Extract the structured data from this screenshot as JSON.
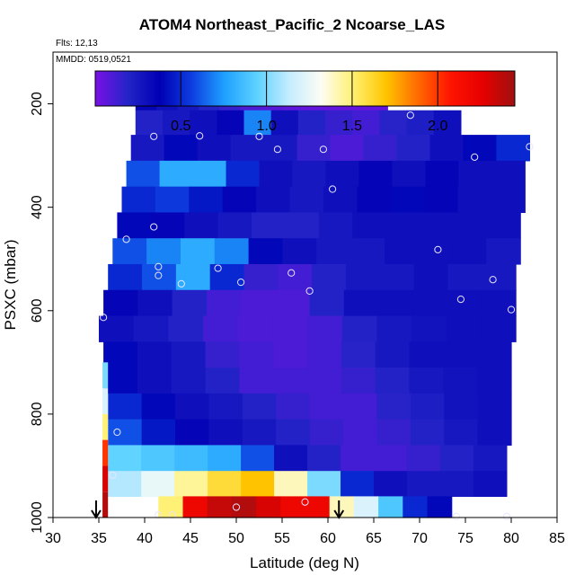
{
  "header": {
    "title": "ATOM4 Northeast_Pacific_2 Ncoarse_LAS",
    "flights": "Flts: 12,13",
    "dates": "MMDD: 0519,0521"
  },
  "colors": {
    "scale": [
      "#7a10e6",
      "#2424c8",
      "#0000b4",
      "#0e3ee0",
      "#1ea0ff",
      "#5cd2ff",
      "#c4ecff",
      "#fdfdf4",
      "#fff070",
      "#ffc500",
      "#ff6a00",
      "#ff1400",
      "#e60000",
      "#a01010"
    ]
  },
  "chart_data": {
    "type": "heatmap",
    "title": "ATOM4 Northeast_Pacific_2 Ncoarse_LAS",
    "xlabel": "Latitude (deg N)",
    "ylabel": "PSXC (mbar)",
    "xlim": [
      30,
      85
    ],
    "ylim": [
      1000,
      100
    ],
    "x_ticks": [
      30,
      35,
      40,
      45,
      50,
      55,
      60,
      65,
      70,
      75,
      80,
      85
    ],
    "y_ticks": [
      200,
      400,
      600,
      800,
      1000
    ],
    "colorbar": {
      "min": 0,
      "max": 2.45,
      "ticks": [
        0.5,
        1.0,
        1.5,
        2.0
      ],
      "tick_labels": [
        "0.5",
        "1.0",
        "1.5",
        "2.0"
      ]
    },
    "layers": [
      {
        "p": 190,
        "lat_start": 39,
        "lat_end": 66.5,
        "values": [
          0.35,
          0.3,
          0.25,
          0.2,
          0.15,
          0.1,
          0.08,
          0.06,
          0.05,
          0.05,
          0.05,
          0.05
        ]
      },
      {
        "p": 235,
        "lat_start": 39,
        "lat_end": 74.5,
        "values": [
          0.2,
          0.25,
          0.3,
          0.35,
          0.7,
          0.3,
          0.2,
          0.15,
          0.12,
          0.18,
          0.22,
          0.3
        ]
      },
      {
        "p": 285,
        "lat_start": 38.5,
        "lat_end": 82,
        "values": [
          0.25,
          0.4,
          0.3,
          0.25,
          0.25,
          0.15,
          0.1,
          0.15,
          0.2,
          0.3,
          0.4,
          0.5
        ]
      },
      {
        "p": 335,
        "lat_start": 38,
        "lat_end": 81.5,
        "values": [
          0.6,
          0.8,
          0.8,
          0.5,
          0.3,
          0.25,
          0.3,
          0.35,
          0.3,
          0.35,
          0.3,
          0.3
        ]
      },
      {
        "p": 385,
        "lat_start": 37.5,
        "lat_end": 81.5,
        "values": [
          0.5,
          0.55,
          0.45,
          0.35,
          0.3,
          0.25,
          0.3,
          0.35,
          0.4,
          0.35,
          0.3,
          0.3
        ]
      },
      {
        "p": 435,
        "lat_start": 37,
        "lat_end": 81,
        "values": [
          0.4,
          0.35,
          0.3,
          0.25,
          0.2,
          0.2,
          0.25,
          0.3,
          0.3,
          0.3,
          0.3,
          0.3
        ]
      },
      {
        "p": 485,
        "lat_start": 36.5,
        "lat_end": 81,
        "values": [
          0.6,
          0.7,
          0.8,
          0.7,
          0.4,
          0.3,
          0.25,
          0.25,
          0.3,
          0.3,
          0.3,
          0.25
        ]
      },
      {
        "p": 535,
        "lat_start": 36,
        "lat_end": 80.5,
        "values": [
          0.5,
          0.6,
          0.8,
          0.5,
          0.15,
          0.12,
          0.2,
          0.25,
          0.25,
          0.3,
          0.25,
          0.25
        ]
      },
      {
        "p": 585,
        "lat_start": 35.5,
        "lat_end": 80.5,
        "values": [
          0.35,
          0.3,
          0.2,
          0.12,
          0.1,
          0.1,
          0.2,
          0.3,
          0.3,
          0.3,
          0.3,
          0.3
        ]
      },
      {
        "p": 635,
        "lat_start": 35,
        "lat_end": 80.5,
        "values": [
          0.3,
          0.25,
          0.2,
          0.12,
          0.1,
          0.1,
          0.12,
          0.2,
          0.25,
          0.28,
          0.3,
          0.3
        ]
      },
      {
        "p": 685,
        "lat_start": 35.5,
        "lat_end": 80,
        "values": [
          0.4,
          0.3,
          0.25,
          0.15,
          0.12,
          0.1,
          0.12,
          0.18,
          0.25,
          0.3,
          0.3,
          0.3
        ]
      },
      {
        "p": 735,
        "lat_start": 35.5,
        "lat_end": 80,
        "values": [
          0.4,
          0.3,
          0.25,
          0.2,
          0.12,
          0.12,
          0.12,
          0.15,
          0.2,
          0.25,
          0.28,
          0.3
        ]
      },
      {
        "p": 785,
        "lat_start": 36,
        "lat_end": 80,
        "values": [
          0.5,
          0.4,
          0.3,
          0.25,
          0.2,
          0.15,
          0.12,
          0.12,
          0.18,
          0.22,
          0.28,
          0.3
        ]
      },
      {
        "p": 835,
        "lat_start": 36,
        "lat_end": 80,
        "values": [
          0.6,
          0.45,
          0.35,
          0.3,
          0.25,
          0.2,
          0.15,
          0.12,
          0.15,
          0.2,
          0.25,
          0.3
        ]
      },
      {
        "p": 885,
        "lat_start": 36,
        "lat_end": 79.5,
        "values": [
          0.95,
          0.9,
          0.85,
          0.8,
          0.6,
          0.3,
          0.2,
          0.12,
          0.12,
          0.15,
          0.2,
          0.25
        ]
      },
      {
        "p": 935,
        "lat_start": 36,
        "lat_end": 79.5,
        "values": [
          1.1,
          1.25,
          1.45,
          1.6,
          1.7,
          1.4,
          1.0,
          0.5,
          0.3,
          0.25,
          0.25,
          0.3
        ]
      },
      {
        "p": 983,
        "lat_start": 41.5,
        "lat_end": 73.5,
        "values": [
          1.5,
          2.2,
          2.35,
          2.4,
          2.3,
          2.2,
          2.2,
          1.4,
          1.2,
          0.9,
          0.5,
          0.4
        ]
      }
    ],
    "edge_samples": [
      {
        "lat": 36,
        "p_start": 700,
        "p_end": 1000,
        "values": [
          1.0,
          1.2,
          1.5,
          2.0,
          2.3,
          2.4
        ]
      }
    ],
    "points": [
      {
        "lat": 39.5,
        "p": 195
      },
      {
        "lat": 63.5,
        "p": 190
      },
      {
        "lat": 66.5,
        "p": 188
      },
      {
        "lat": 69,
        "p": 222
      },
      {
        "lat": 41,
        "p": 263
      },
      {
        "lat": 46,
        "p": 262
      },
      {
        "lat": 52.5,
        "p": 263
      },
      {
        "lat": 54.5,
        "p": 288
      },
      {
        "lat": 59.5,
        "p": 288
      },
      {
        "lat": 76,
        "p": 303
      },
      {
        "lat": 82,
        "p": 283
      },
      {
        "lat": 60.5,
        "p": 365
      },
      {
        "lat": 41,
        "p": 438
      },
      {
        "lat": 38,
        "p": 462
      },
      {
        "lat": 72,
        "p": 482
      },
      {
        "lat": 41.5,
        "p": 515
      },
      {
        "lat": 48,
        "p": 518
      },
      {
        "lat": 41.5,
        "p": 532
      },
      {
        "lat": 56,
        "p": 527
      },
      {
        "lat": 78,
        "p": 540
      },
      {
        "lat": 44,
        "p": 548
      },
      {
        "lat": 50.5,
        "p": 545
      },
      {
        "lat": 58,
        "p": 562
      },
      {
        "lat": 74.5,
        "p": 578
      },
      {
        "lat": 80,
        "p": 598
      },
      {
        "lat": 35.5,
        "p": 613
      },
      {
        "lat": 37,
        "p": 835
      },
      {
        "lat": 36.5,
        "p": 918
      },
      {
        "lat": 50,
        "p": 980
      },
      {
        "lat": 57.5,
        "p": 970
      },
      {
        "lat": 41.5,
        "p": 995
      },
      {
        "lat": 43,
        "p": 995
      },
      {
        "lat": 74,
        "p": 998
      },
      {
        "lat": 79.5,
        "p": 998
      }
    ],
    "arrows": [
      {
        "lat": 34.7
      },
      {
        "lat": 61.2
      }
    ]
  }
}
